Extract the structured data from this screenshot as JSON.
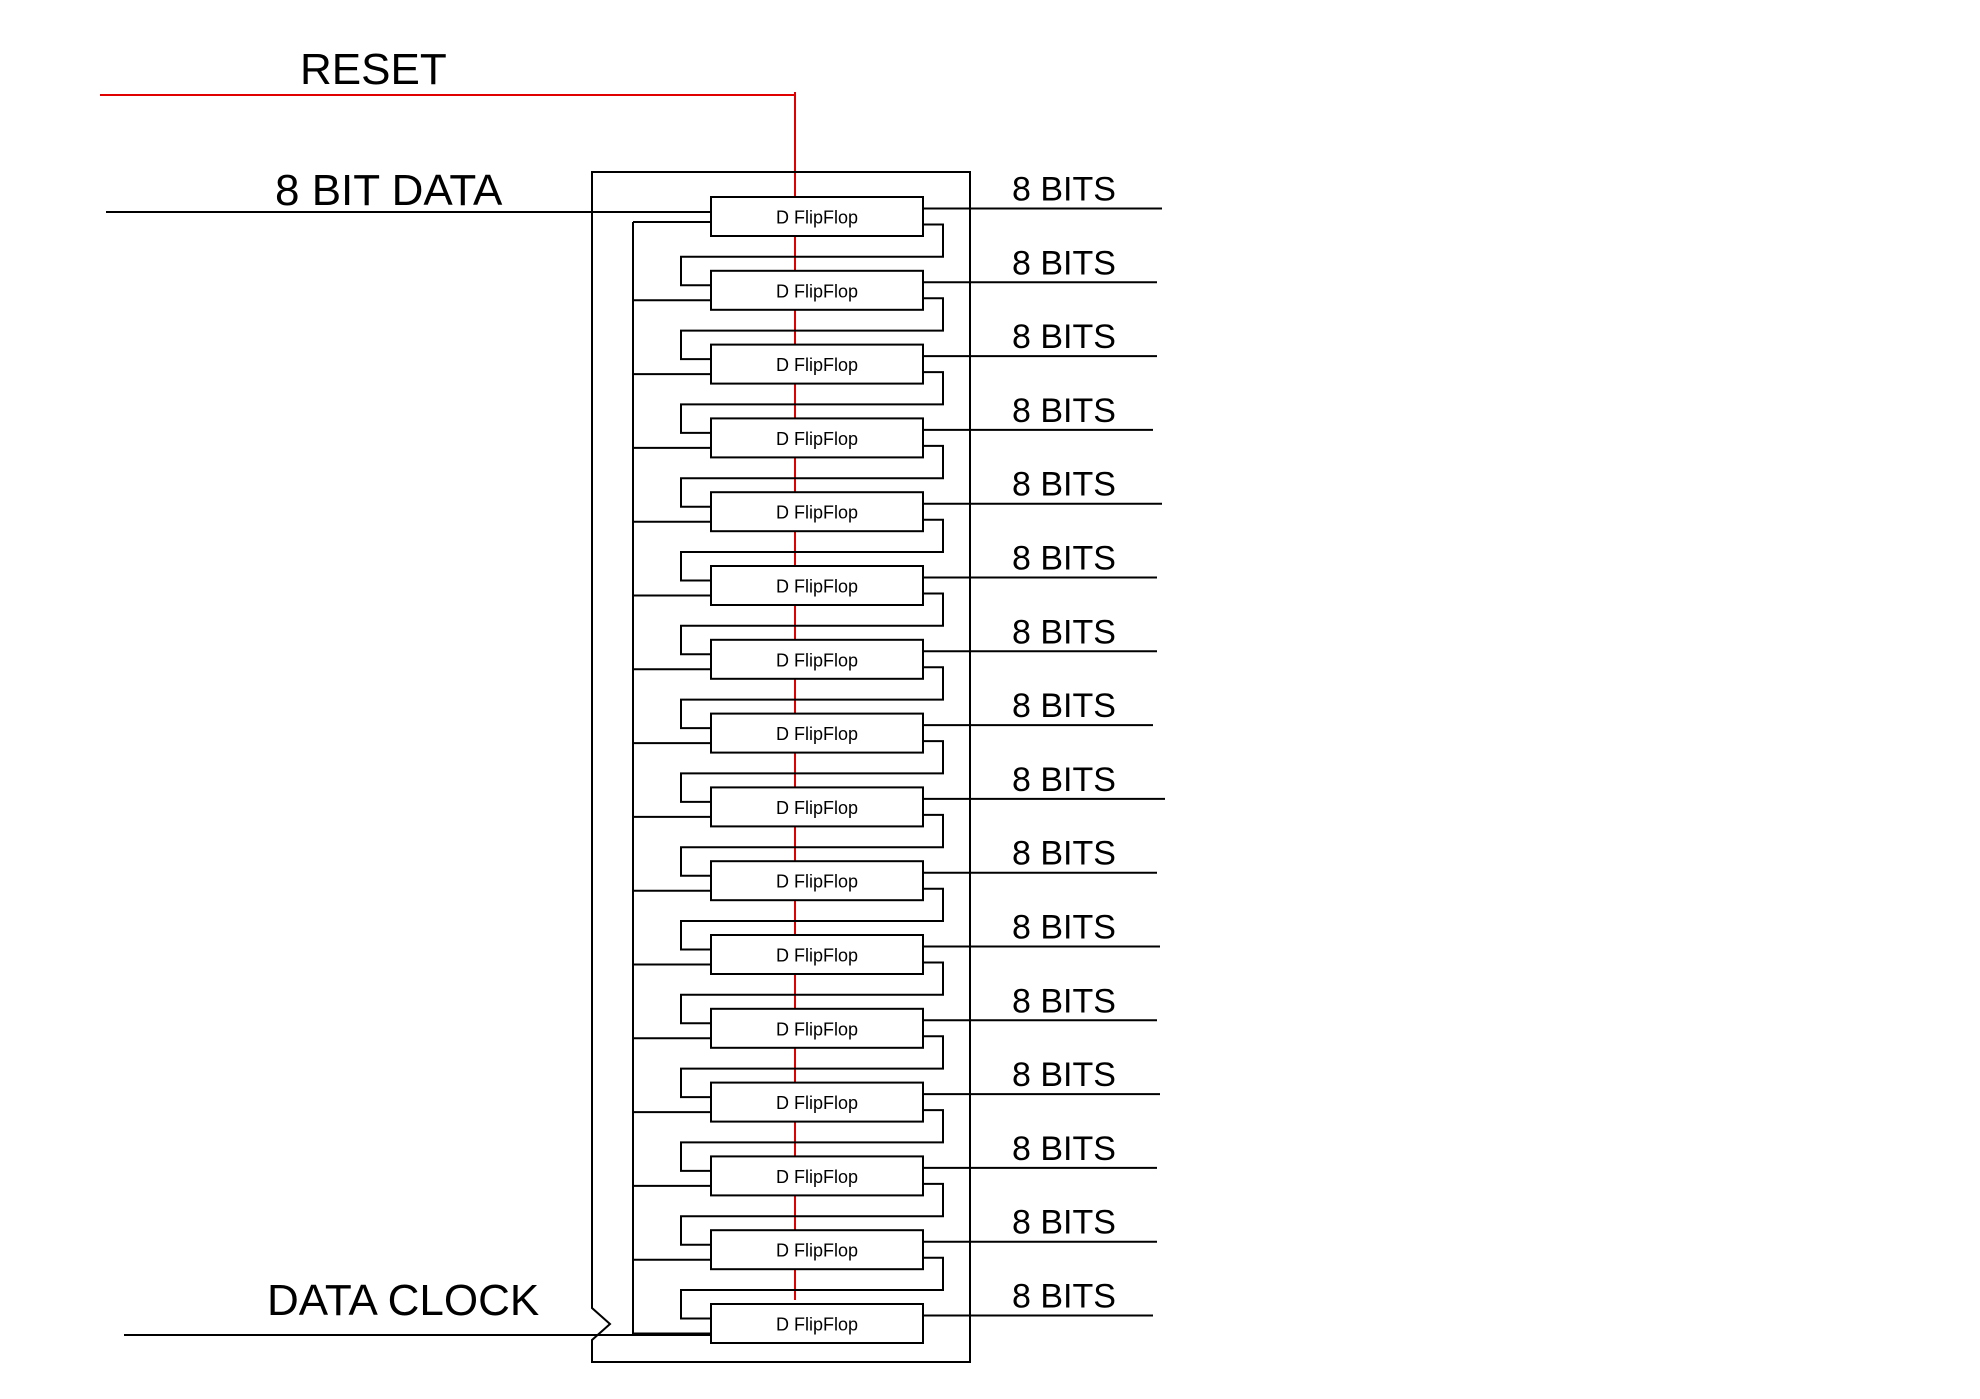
{
  "labels": {
    "reset": "RESET",
    "data_in": "8 BIT DATA",
    "clock": "DATA CLOCK"
  },
  "flipflops": [
    {
      "label": "D FlipFlop",
      "output": "8 BITS"
    },
    {
      "label": "D FlipFlop",
      "output": "8 BITS"
    },
    {
      "label": "D FlipFlop",
      "output": "8 BITS"
    },
    {
      "label": "D FlipFlop",
      "output": "8 BITS"
    },
    {
      "label": "D FlipFlop",
      "output": "8 BITS"
    },
    {
      "label": "D FlipFlop",
      "output": "8 BITS"
    },
    {
      "label": "D FlipFlop",
      "output": "8 BITS"
    },
    {
      "label": "D FlipFlop",
      "output": "8 BITS"
    },
    {
      "label": "D FlipFlop",
      "output": "8 BITS"
    },
    {
      "label": "D FlipFlop",
      "output": "8 BITS"
    },
    {
      "label": "D FlipFlop",
      "output": "8 BITS"
    },
    {
      "label": "D FlipFlop",
      "output": "8 BITS"
    },
    {
      "label": "D FlipFlop",
      "output": "8 BITS"
    },
    {
      "label": "D FlipFlop",
      "output": "8 BITS"
    },
    {
      "label": "D FlipFlop",
      "output": "8 BITS"
    },
    {
      "label": "D FlipFlop",
      "output": "8 BITS"
    }
  ],
  "colors": {
    "reset_line": "#e00000",
    "wire": "#000000",
    "background": "#ffffff"
  }
}
